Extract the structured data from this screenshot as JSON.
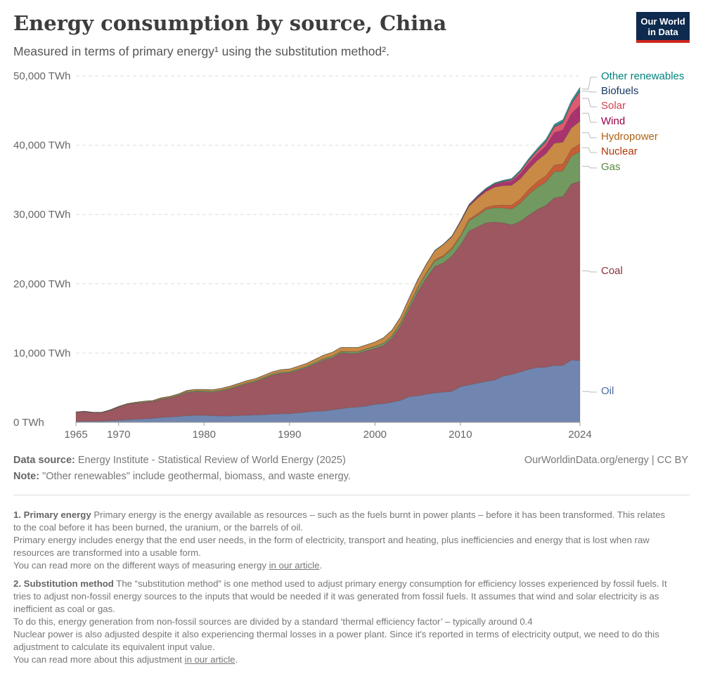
{
  "header": {
    "title": "Energy consumption by source, China",
    "subtitle": "Measured in terms of primary energy¹ using the substitution method².",
    "logo": "Our World in Data"
  },
  "footer": {
    "source_label": "Data source:",
    "source": "Energy Institute - Statistical Review of World Energy (2025)",
    "license": "OurWorldinData.org/energy | CC BY",
    "note_label": "Note:",
    "note": "\"Other renewables\" include geothermal, biomass, and waste energy."
  },
  "footnotes": [
    {
      "title": "1. Primary energy",
      "lines": [
        "Primary energy is the energy available as resources – such as the fuels burnt in power plants – before it has been transformed. This relates to the coal before it has been burned, the uranium, or the barrels of oil.",
        "Primary energy includes energy that the end user needs, in the form of electricity, transport and heating, plus inefficiencies and energy that is lost when raw resources are transformed into a usable form."
      ],
      "more": "You can read more on the different ways of measuring energy ",
      "link": "in our article",
      "end": "."
    },
    {
      "title": "2. Substitution method",
      "lines": [
        "The “substitution method” is one method used to adjust primary energy consumption for efficiency losses experienced by fossil fuels. It tries to adjust non-fossil energy sources to the inputs that would be needed if it was generated from fossil fuels. It assumes that wind and solar electricity is as inefficient as coal or gas.",
        "To do this, energy generation from non-fossil sources are divided by a standard ‘thermal efficiency factor’ – typically around 0.4",
        "Nuclear power is also adjusted despite it also experiencing thermal losses in a power plant. Since it's reported in terms of electricity output, we need to do this adjustment to calculate its equivalent input value."
      ],
      "more": "You can read more about this adjustment ",
      "link": "in our article",
      "end": "."
    }
  ],
  "chart_data": {
    "type": "area",
    "stacked": true,
    "unit": "TWh",
    "grid": "horizontal dashed",
    "legend": "right, labels at series ends",
    "ylim": [
      0,
      50000
    ],
    "yticks": [
      0,
      10000,
      20000,
      30000,
      40000,
      50000
    ],
    "ytick_labels": [
      "0 TWh",
      "10,000 TWh",
      "20,000 TWh",
      "30,000 TWh",
      "40,000 TWh",
      "50,000 TWh"
    ],
    "xticks": [
      1965,
      1970,
      1980,
      1990,
      2000,
      2010,
      2024
    ],
    "x_start": 1965,
    "x_end": 2024,
    "series": [
      {
        "name": "Oil",
        "color": "#7086b0",
        "label_color": "#4c6a9c",
        "values": [
          110,
          140,
          140,
          160,
          220,
          280,
          380,
          440,
          520,
          580,
          700,
          760,
          850,
          950,
          1000,
          1000,
          950,
          900,
          920,
          960,
          1000,
          1050,
          1100,
          1180,
          1230,
          1250,
          1360,
          1460,
          1600,
          1640,
          1780,
          1960,
          2130,
          2200,
          2350,
          2600,
          2700,
          2900,
          3150,
          3700,
          3800,
          4050,
          4250,
          4350,
          4450,
          5150,
          5400,
          5650,
          5900,
          6100,
          6650,
          6900,
          7250,
          7650,
          7900,
          7950,
          8200,
          8200,
          9000,
          8900
        ]
      },
      {
        "name": "Coal",
        "color": "#9c5760",
        "label_color": "#883039",
        "values": [
          1335,
          1395,
          1245,
          1220,
          1495,
          1910,
          2190,
          2310,
          2360,
          2380,
          2630,
          2750,
          2980,
          3350,
          3410,
          3400,
          3390,
          3640,
          3890,
          4230,
          4580,
          4810,
          5250,
          5640,
          5860,
          5910,
          6190,
          6470,
          6870,
          7335,
          7545,
          8035,
          7825,
          7745,
          7990,
          8065,
          8405,
          9225,
          10770,
          12645,
          15000,
          16750,
          18250,
          18650,
          19550,
          20450,
          22200,
          22550,
          22900,
          22800,
          22150,
          21600,
          21750,
          22250,
          22800,
          23350,
          24200,
          24400,
          25400,
          25900
        ]
      },
      {
        "name": "Gas",
        "color": "#72995f",
        "label_color": "#58883c",
        "values": [
          10,
          15,
          15,
          15,
          25,
          30,
          40,
          50,
          60,
          70,
          90,
          110,
          130,
          140,
          150,
          150,
          140,
          130,
          130,
          140,
          140,
          150,
          150,
          160,
          160,
          160,
          170,
          170,
          180,
          190,
          200,
          210,
          220,
          220,
          240,
          270,
          300,
          330,
          370,
          430,
          530,
          650,
          790,
          910,
          990,
          1180,
          1480,
          1640,
          1920,
          2060,
          2130,
          2270,
          2610,
          3010,
          3210,
          3380,
          3760,
          3690,
          4010,
          4300
        ]
      },
      {
        "name": "Nuclear",
        "color": "#c65d35",
        "label_color": "#b13507",
        "values": [
          0,
          0,
          0,
          0,
          0,
          0,
          0,
          0,
          0,
          0,
          0,
          0,
          0,
          0,
          0,
          0,
          0,
          0,
          0,
          0,
          0,
          0,
          0,
          0,
          0,
          0,
          0,
          0,
          0,
          35,
          35,
          35,
          35,
          35,
          40,
          45,
          45,
          65,
          110,
          125,
          135,
          140,
          160,
          175,
          180,
          190,
          230,
          250,
          280,
          340,
          430,
          540,
          620,
          700,
          830,
          880,
          970,
          1000,
          1030,
          1060
        ]
      },
      {
        "name": "Hydropower",
        "color": "#c88a44",
        "label_color": "#b16214",
        "values": [
          45,
          50,
          50,
          55,
          60,
          80,
          90,
          100,
          110,
          120,
          130,
          130,
          140,
          160,
          190,
          200,
          220,
          230,
          260,
          270,
          280,
          290,
          300,
          320,
          350,
          380,
          380,
          400,
          450,
          500,
          540,
          560,
          590,
          600,
          580,
          620,
          750,
          780,
          800,
          1000,
          1100,
          1200,
          1300,
          1550,
          1600,
          1900,
          1850,
          2250,
          2300,
          2650,
          2800,
          2900,
          2900,
          2950,
          3050,
          3200,
          3150,
          3150,
          3050,
          3300
        ]
      },
      {
        "name": "Wind",
        "color": "#a8336e",
        "label_color": "#970046",
        "values": [
          0,
          0,
          0,
          0,
          0,
          0,
          0,
          0,
          0,
          0,
          0,
          0,
          0,
          0,
          0,
          0,
          0,
          0,
          0,
          0,
          0,
          0,
          0,
          0,
          0,
          0,
          0,
          0,
          0,
          0,
          0,
          0,
          0,
          0,
          0,
          2,
          3,
          4,
          5,
          5,
          5,
          10,
          25,
          35,
          65,
          115,
          180,
          240,
          330,
          380,
          460,
          570,
          700,
          810,
          890,
          1100,
          1540,
          1760,
          2050,
          2300
        ]
      },
      {
        "name": "Solar",
        "color": "#de5a6e",
        "label_color": "#d73c50",
        "values": [
          0,
          0,
          0,
          0,
          0,
          0,
          0,
          0,
          0,
          0,
          0,
          0,
          0,
          0,
          0,
          0,
          0,
          0,
          0,
          0,
          0,
          0,
          0,
          0,
          0,
          0,
          0,
          0,
          0,
          0,
          0,
          0,
          0,
          0,
          0,
          0,
          0,
          0,
          0,
          0,
          0,
          0,
          0,
          0,
          0,
          3,
          7,
          10,
          25,
          60,
          110,
          180,
          300,
          410,
          500,
          620,
          780,
          1030,
          1400,
          2000
        ]
      },
      {
        "name": "Biofuels",
        "color": "#1a3c6c",
        "label_color": "#18375f",
        "values": [
          0,
          0,
          0,
          0,
          0,
          0,
          0,
          0,
          0,
          0,
          0,
          0,
          0,
          0,
          0,
          0,
          0,
          0,
          0,
          0,
          0,
          0,
          0,
          0,
          0,
          0,
          0,
          0,
          0,
          0,
          0,
          0,
          0,
          0,
          0,
          0,
          0,
          10,
          10,
          12,
          15,
          20,
          25,
          30,
          33,
          35,
          38,
          40,
          42,
          44,
          45,
          46,
          48,
          49,
          50,
          50,
          52,
          55,
          58,
          60
        ]
      },
      {
        "name": "Other renewables",
        "color": "#2f8f8c",
        "label_color": "#00847e",
        "values": [
          0,
          0,
          0,
          0,
          0,
          0,
          0,
          0,
          0,
          0,
          0,
          0,
          0,
          0,
          0,
          0,
          0,
          0,
          0,
          0,
          0,
          0,
          0,
          0,
          0,
          0,
          0,
          0,
          0,
          0,
          0,
          0,
          0,
          0,
          0,
          0,
          0,
          0,
          0,
          0,
          20,
          30,
          40,
          45,
          50,
          60,
          80,
          100,
          120,
          150,
          170,
          200,
          230,
          260,
          300,
          330,
          380,
          420,
          480,
          550
        ]
      }
    ]
  }
}
